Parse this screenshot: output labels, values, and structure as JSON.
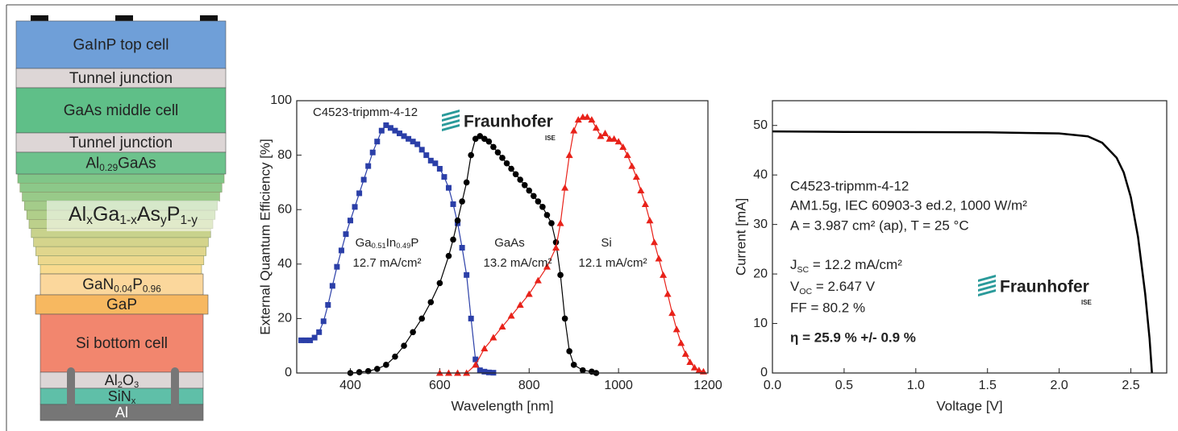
{
  "layers": [
    {
      "label": "GaInP top cell"
    },
    {
      "label": "Tunnel junction"
    },
    {
      "label": "GaAs middle cell"
    },
    {
      "label": "Tunnel junction"
    },
    {
      "label": [
        "Al",
        "0.29",
        "GaAs"
      ]
    },
    {
      "label": [
        "Al",
        "x",
        "Ga",
        "1-x",
        "As",
        "y",
        "P",
        "1-y"
      ]
    },
    {
      "label": [
        "GaN",
        "0.04",
        "P",
        "0.96"
      ]
    },
    {
      "label": "GaP"
    },
    {
      "label": "Si bottom cell"
    },
    {
      "label": [
        "Al",
        "2",
        "O",
        "3"
      ]
    },
    {
      "label": [
        "SiN",
        "x"
      ]
    },
    {
      "label": "Al"
    }
  ],
  "chart_data": [
    {
      "type": "line",
      "xlabel": "Wavelength [nm]",
      "ylabel": "External Quantum Efficiency [%]",
      "xlim": [
        280,
        1200
      ],
      "ylim": [
        0,
        100
      ],
      "xticks": [
        400,
        600,
        800,
        1000,
        1200
      ],
      "yticks": [
        0,
        20,
        40,
        60,
        80,
        100
      ],
      "series": [
        {
          "color": "#2b3fa8",
          "marker": "square",
          "x": [
            290,
            300,
            310,
            320,
            330,
            340,
            350,
            360,
            370,
            380,
            390,
            400,
            410,
            420,
            430,
            440,
            450,
            460,
            470,
            480,
            490,
            500,
            510,
            520,
            530,
            540,
            550,
            560,
            570,
            580,
            590,
            600,
            610,
            620,
            630,
            640,
            650,
            660,
            670,
            680,
            690,
            700,
            710,
            720
          ],
          "values": [
            12,
            12,
            12,
            13,
            15,
            19,
            25,
            32,
            39,
            45,
            51,
            56,
            61,
            66,
            71,
            76,
            81,
            85,
            89,
            91,
            90,
            89,
            88,
            87,
            86,
            85,
            84,
            82,
            80,
            78,
            77,
            75,
            72,
            68,
            62,
            55,
            46,
            36,
            20,
            5,
            1,
            0.5,
            0.2,
            0.1
          ]
        },
        {
          "color": "#000000",
          "marker": "circle",
          "x": [
            400,
            420,
            440,
            460,
            480,
            500,
            520,
            540,
            560,
            580,
            600,
            620,
            630,
            640,
            650,
            660,
            670,
            680,
            690,
            700,
            710,
            720,
            730,
            740,
            750,
            760,
            770,
            780,
            790,
            800,
            810,
            820,
            830,
            840,
            850,
            860,
            870,
            880,
            890,
            900,
            920,
            940,
            950
          ],
          "values": [
            0,
            0.3,
            0.7,
            1.5,
            3,
            6,
            10,
            15,
            20,
            26,
            33,
            43,
            49,
            56,
            63,
            70,
            80,
            86,
            87,
            86,
            85,
            83,
            81,
            79,
            77,
            75,
            73,
            71,
            69,
            67,
            65,
            63,
            61,
            58,
            55,
            48,
            36,
            20,
            8,
            3,
            1,
            0.5,
            0
          ]
        },
        {
          "color": "#e8221a",
          "marker": "triangle",
          "x": [
            600,
            620,
            640,
            660,
            680,
            700,
            720,
            740,
            760,
            780,
            800,
            820,
            840,
            860,
            870,
            880,
            890,
            900,
            910,
            920,
            930,
            940,
            950,
            960,
            970,
            980,
            990,
            1000,
            1010,
            1020,
            1030,
            1040,
            1050,
            1060,
            1070,
            1080,
            1090,
            1100,
            1110,
            1120,
            1130,
            1140,
            1150,
            1160,
            1170,
            1180,
            1190
          ],
          "values": [
            0,
            0,
            0,
            0,
            3,
            9,
            13,
            17,
            21,
            25,
            29,
            34,
            39,
            46,
            55,
            68,
            80,
            89,
            93,
            94,
            94,
            93,
            90,
            87,
            88,
            86,
            86,
            85,
            83,
            80,
            76,
            72,
            67,
            62,
            56,
            48,
            42,
            36,
            29,
            22,
            16,
            11,
            7,
            4,
            2,
            1,
            0.5
          ]
        }
      ],
      "annotations": [
        {
          "text": "C4523-tripmm-4-12"
        },
        {
          "text": [
            "Ga",
            "0.51",
            "In",
            "0.49",
            "P"
          ]
        },
        {
          "text": "12.7 mA/cm²"
        },
        {
          "text": "GaAs"
        },
        {
          "text": "13.2 mA/cm²"
        },
        {
          "text": "Si"
        },
        {
          "text": "12.1 mA/cm²"
        },
        {
          "text": "Fraunhofer"
        },
        {
          "text": "ISE"
        }
      ]
    },
    {
      "type": "line",
      "xlabel": "Voltage [V]",
      "ylabel": "Current [mA]",
      "xlim": [
        0,
        2.75
      ],
      "ylim": [
        0,
        55
      ],
      "xticks": [
        {
          "value": 0,
          "label": "0.0"
        },
        0.5,
        {
          "value": 1,
          "label": "1.0"
        },
        1.5,
        {
          "value": 2,
          "label": "2.0"
        },
        2.5
      ],
      "yticks": [
        0,
        10,
        20,
        30,
        40,
        50
      ],
      "series": [
        {
          "color": "#000000",
          "x": [
            0,
            0.5,
            1.0,
            1.5,
            2.0,
            2.2,
            2.3,
            2.4,
            2.45,
            2.5,
            2.55,
            2.6,
            2.63,
            2.647
          ],
          "values": [
            48.8,
            48.7,
            48.65,
            48.6,
            48.4,
            47.8,
            46.5,
            43.5,
            40.5,
            35.5,
            27.5,
            16,
            7,
            0
          ]
        }
      ],
      "annotations": [
        {
          "text": "C4523-tripmm-4-12"
        },
        {
          "text": "AM1.5g, IEC 60903-3 ed.2, 1000 W/m²"
        },
        {
          "text": "A = 3.987 cm² (ap), T = 25 °C"
        },
        {
          "text": [
            "J",
            "SC",
            " = 12.2 mA/cm²"
          ]
        },
        {
          "text": [
            "V",
            "OC",
            " = 2.647 V"
          ]
        },
        {
          "text": "FF = 80.2 %"
        },
        {
          "text": "η = 25.9 % +/- 0.9 %"
        },
        {
          "text": "Fraunhofer"
        },
        {
          "text": "ISE"
        }
      ]
    }
  ]
}
